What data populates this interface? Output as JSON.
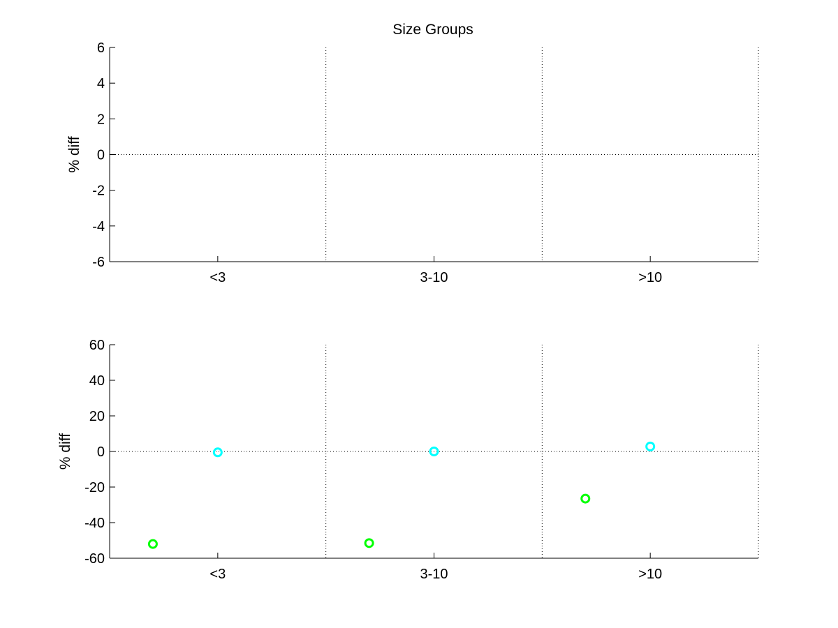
{
  "figure": {
    "title": "Size Groups",
    "background": "#ffffff"
  },
  "chart_data": [
    {
      "type": "scatter",
      "title": "Size Groups",
      "xlabel": "",
      "ylabel": "% diff",
      "categories": [
        "<3",
        "3-10",
        ">10"
      ],
      "ylim": [
        -6,
        6
      ],
      "yticks": [
        -6,
        -4,
        -2,
        0,
        2,
        4,
        6
      ],
      "grid": "dotted group separators and zero line",
      "series": []
    },
    {
      "type": "scatter",
      "title": "",
      "xlabel": "",
      "ylabel": "% diff",
      "categories": [
        "<3",
        "3-10",
        ">10"
      ],
      "ylim": [
        -60,
        60
      ],
      "yticks": [
        -60,
        -40,
        -20,
        0,
        20,
        40,
        60
      ],
      "grid": "dotted group separators and zero line",
      "series": [
        {
          "color": "#00ff00",
          "marker": "circle",
          "x": [
            -0.3,
            -0.3,
            -0.3
          ],
          "values": [
            -52,
            -51.5,
            -26.5
          ]
        },
        {
          "color": "#00ffff",
          "marker": "circle",
          "x": [
            0,
            0,
            0
          ],
          "values": [
            -0.5,
            0,
            2.8
          ]
        }
      ]
    }
  ]
}
